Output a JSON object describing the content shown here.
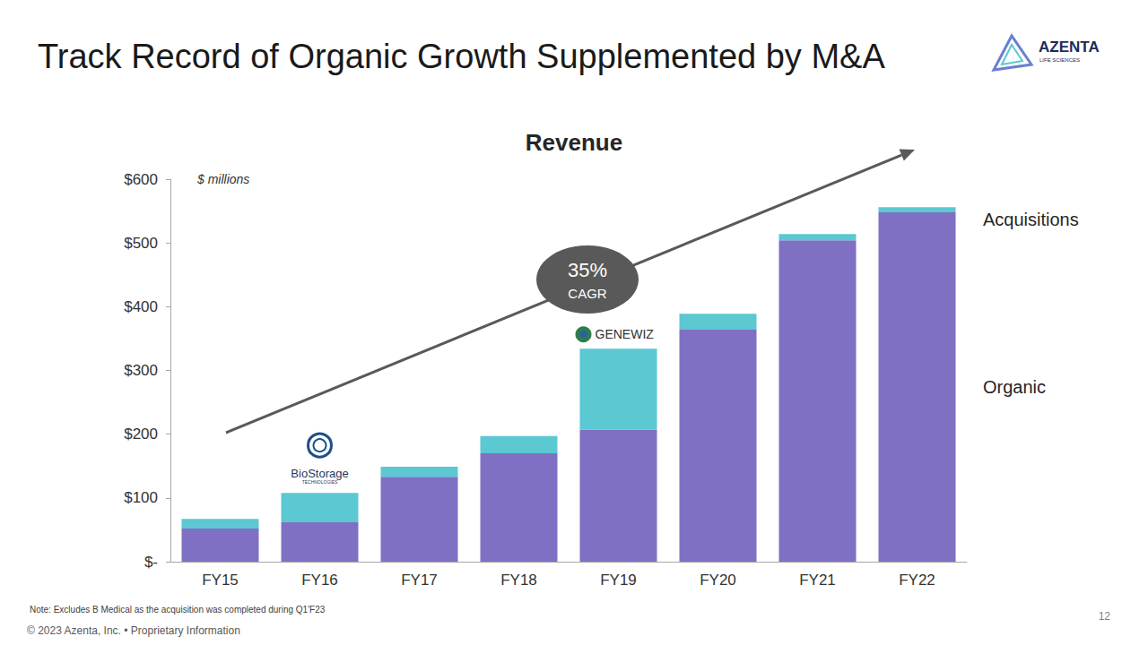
{
  "page": {
    "title": "Track Record of Organic Growth Supplemented by M&A",
    "logo": {
      "name": "AZENTA",
      "tagline": "LIFE SCIENCES"
    },
    "note": "Note: Excludes B Medical as the acquisition was completed during Q1'F23",
    "copyright": "© 2023 Azenta, Inc. • Proprietary Information",
    "page_number": 12
  },
  "chart_data": {
    "type": "bar",
    "title": "Revenue",
    "unit_label": "$ millions",
    "categories": [
      "FY15",
      "FY16",
      "FY17",
      "FY18",
      "FY19",
      "FY20",
      "FY21",
      "FY22"
    ],
    "series": [
      {
        "name": "Organic",
        "color": "#8070c4",
        "values": [
          52,
          62,
          133,
          170,
          207,
          364,
          504,
          548
        ]
      },
      {
        "name": "Acquisitions",
        "color": "#5bc8d2",
        "values": [
          15,
          46,
          16,
          27,
          127,
          25,
          10,
          8
        ]
      }
    ],
    "stacked": true,
    "legend": "right",
    "grid": false,
    "ylim": [
      0,
      600
    ],
    "yticks": [
      {
        "value": 0,
        "label": "$-"
      },
      {
        "value": 100,
        "label": "$100"
      },
      {
        "value": 200,
        "label": "$200"
      },
      {
        "value": 300,
        "label": "$300"
      },
      {
        "value": 400,
        "label": "$400"
      },
      {
        "value": 500,
        "label": "$500"
      },
      {
        "value": 600,
        "label": "$600"
      }
    ],
    "cagr": {
      "value_text": "35%",
      "caption": "CAGR"
    },
    "acquisition_labels": [
      {
        "category": "FY16",
        "text": "BioStorage",
        "subtext": "TECHNOLOGIES"
      },
      {
        "category": "FY19",
        "text": "GENEWIZ"
      }
    ]
  }
}
